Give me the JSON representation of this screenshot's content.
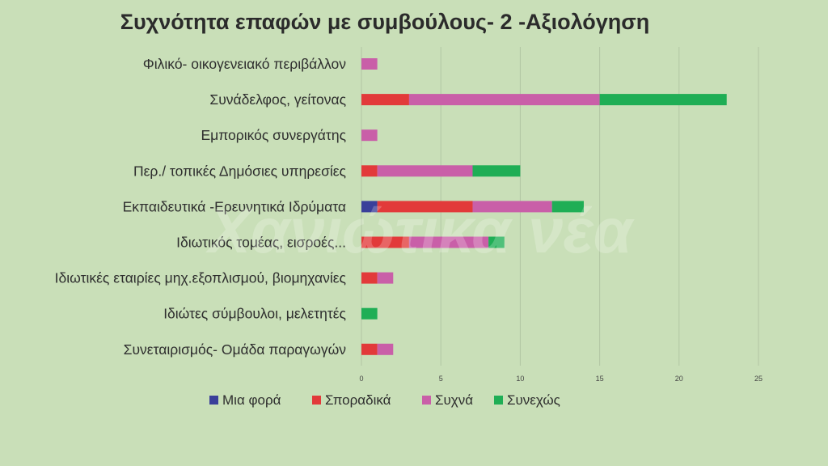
{
  "chart_data": {
    "type": "bar",
    "orientation": "horizontal",
    "stacked": true,
    "title": "Συχνότητα επαφών με συμβούλους- 2 -Αξιολόγηση",
    "xlabel": "",
    "ylabel": "",
    "xlim": [
      0,
      25
    ],
    "xticks": [
      "0",
      "5",
      "10",
      "15",
      "20",
      "25"
    ],
    "grid": true,
    "legend_position": "bottom",
    "categories": [
      "Φιλικό- οικογενειακό περιβάλλον",
      "Συνάδελφος, γείτονας",
      "Εμπορικός συνεργάτης",
      "Περ./ τοπικές Δημόσιες υπηρεσίες",
      "Εκπαιδευτικά -Ερευνητικά Ιδρύματα",
      "Ιδιωτικός τομέας,  εισροές...",
      "Ιδιωτικές εταιρίες μηχ.εξοπλισμού,  βιομηχανίες",
      "Ιδιώτες σύμβουλοι, μελετητές",
      "Συνεταιρισμός- Ομάδα παραγωγών"
    ],
    "series": [
      {
        "name": "Μια φορά",
        "color": "#3a3f9a",
        "values": [
          0,
          0,
          0,
          0,
          1,
          0,
          0,
          0,
          0
        ]
      },
      {
        "name": "Σποραδικά",
        "color": "#e23a3a",
        "values": [
          0,
          3,
          0,
          1,
          6,
          3,
          1,
          0,
          1
        ]
      },
      {
        "name": "Συχνά",
        "color": "#c95fa8",
        "values": [
          1,
          12,
          1,
          6,
          5,
          5,
          1,
          0,
          1
        ]
      },
      {
        "name": "Συνεχώς",
        "color": "#1fae55",
        "values": [
          0,
          8,
          0,
          3,
          2,
          1,
          0,
          1,
          0
        ]
      }
    ]
  },
  "watermark_text": "Χανιώτικα νέα"
}
